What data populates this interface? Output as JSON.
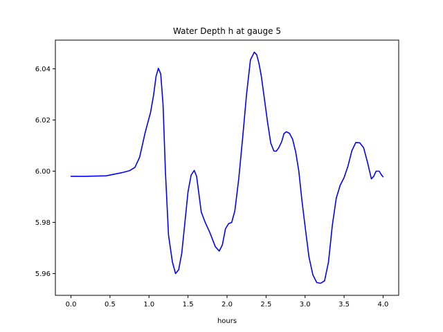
{
  "chart_data": {
    "type": "line",
    "title": "Water Depth h at gauge 5",
    "xlabel": "hours",
    "ylabel": "",
    "xlim": [
      -0.2,
      4.2
    ],
    "ylim": [
      5.9515,
      6.0512
    ],
    "xticks": [
      0.0,
      0.5,
      1.0,
      1.5,
      2.0,
      2.5,
      3.0,
      3.5,
      4.0
    ],
    "xtick_labels": [
      "0.0",
      "0.5",
      "1.0",
      "1.5",
      "2.0",
      "2.5",
      "3.0",
      "3.5",
      "4.0"
    ],
    "yticks": [
      5.96,
      5.98,
      6.0,
      6.02,
      6.04
    ],
    "ytick_labels": [
      "5.96",
      "5.98",
      "6.00",
      "6.02",
      "6.04"
    ],
    "grid": false,
    "series": [
      {
        "color": "#0000ff",
        "x": [
          0.0,
          0.2,
          0.45,
          0.55,
          0.65,
          0.75,
          0.82,
          0.88,
          0.95,
          1.02,
          1.06,
          1.09,
          1.12,
          1.15,
          1.18,
          1.21,
          1.25,
          1.3,
          1.34,
          1.38,
          1.42,
          1.46,
          1.5,
          1.54,
          1.58,
          1.61,
          1.64,
          1.67,
          1.72,
          1.78,
          1.85,
          1.9,
          1.94,
          1.98,
          2.02,
          2.06,
          2.1,
          2.15,
          2.2,
          2.25,
          2.3,
          2.35,
          2.38,
          2.41,
          2.44,
          2.48,
          2.52,
          2.56,
          2.6,
          2.63,
          2.66,
          2.7,
          2.73,
          2.76,
          2.8,
          2.84,
          2.88,
          2.92,
          2.96,
          3.0,
          3.05,
          3.1,
          3.15,
          3.2,
          3.25,
          3.3,
          3.35,
          3.4,
          3.45,
          3.5,
          3.55,
          3.6,
          3.65,
          3.7,
          3.75,
          3.8,
          3.85,
          3.88,
          3.91,
          3.95,
          3.98,
          4.0
        ],
        "y": [
          5.998,
          5.998,
          5.9982,
          5.9988,
          5.9994,
          6.0002,
          6.0015,
          6.0055,
          6.015,
          6.023,
          6.03,
          6.037,
          6.0402,
          6.038,
          6.026,
          6.0,
          5.975,
          5.9645,
          5.96,
          5.9615,
          5.968,
          5.98,
          5.992,
          5.9985,
          6.0003,
          5.998,
          5.991,
          5.984,
          5.98,
          5.976,
          5.9705,
          5.9688,
          5.9712,
          5.9775,
          5.9795,
          5.98,
          5.9845,
          5.997,
          6.013,
          6.03,
          6.0435,
          6.0465,
          6.0455,
          6.042,
          6.037,
          6.028,
          6.019,
          6.011,
          6.0079,
          6.0078,
          6.009,
          6.0115,
          6.0147,
          6.0154,
          6.0148,
          6.0125,
          6.0075,
          6.0,
          5.9885,
          5.9785,
          5.9665,
          5.9595,
          5.9565,
          5.9562,
          5.9572,
          5.9645,
          5.979,
          5.9895,
          5.9945,
          5.9975,
          6.002,
          6.008,
          6.0112,
          6.0111,
          6.0092,
          6.0035,
          5.997,
          5.998,
          6.0,
          6.0,
          5.9985,
          5.9978
        ]
      }
    ]
  }
}
